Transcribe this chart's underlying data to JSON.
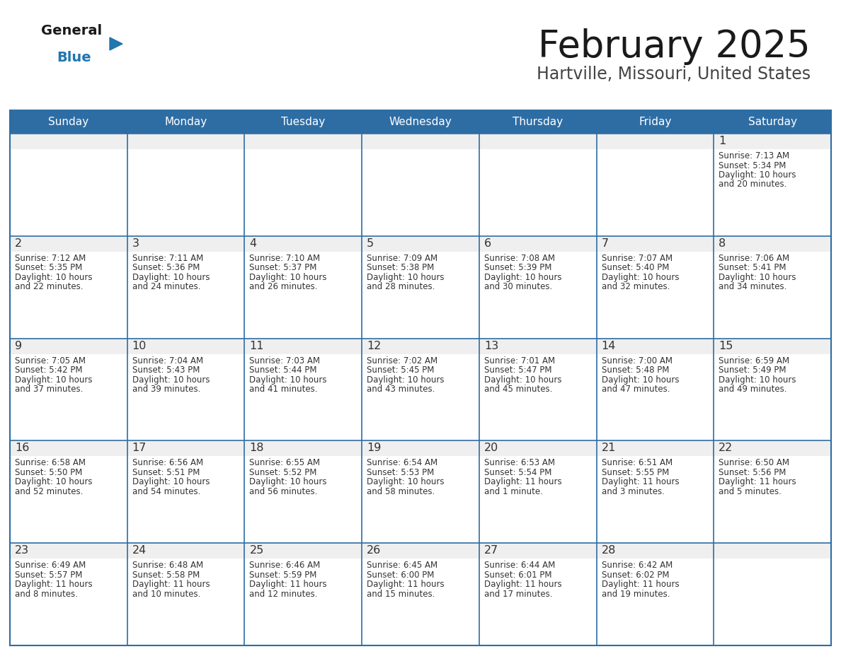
{
  "title": "February 2025",
  "subtitle": "Hartville, Missouri, United States",
  "days_of_week": [
    "Sunday",
    "Monday",
    "Tuesday",
    "Wednesday",
    "Thursday",
    "Friday",
    "Saturday"
  ],
  "header_bg": "#2E6DA4",
  "header_text": "#FFFFFF",
  "cell_bg_gray": "#EFEFEF",
  "cell_bg_white": "#FFFFFF",
  "border_color": "#2E6DA4",
  "title_color": "#1a1a1a",
  "subtitle_color": "#444444",
  "day_number_color": "#333333",
  "cell_text_color": "#333333",
  "logo_general_color": "#1a1a1a",
  "logo_blue_color": "#2176AE",
  "calendar_data": [
    [
      null,
      null,
      null,
      null,
      null,
      null,
      {
        "day": 1,
        "sunrise": "7:13 AM",
        "sunset": "5:34 PM",
        "daylight": "10 hours and 20 minutes."
      }
    ],
    [
      {
        "day": 2,
        "sunrise": "7:12 AM",
        "sunset": "5:35 PM",
        "daylight": "10 hours and 22 minutes."
      },
      {
        "day": 3,
        "sunrise": "7:11 AM",
        "sunset": "5:36 PM",
        "daylight": "10 hours and 24 minutes."
      },
      {
        "day": 4,
        "sunrise": "7:10 AM",
        "sunset": "5:37 PM",
        "daylight": "10 hours and 26 minutes."
      },
      {
        "day": 5,
        "sunrise": "7:09 AM",
        "sunset": "5:38 PM",
        "daylight": "10 hours and 28 minutes."
      },
      {
        "day": 6,
        "sunrise": "7:08 AM",
        "sunset": "5:39 PM",
        "daylight": "10 hours and 30 minutes."
      },
      {
        "day": 7,
        "sunrise": "7:07 AM",
        "sunset": "5:40 PM",
        "daylight": "10 hours and 32 minutes."
      },
      {
        "day": 8,
        "sunrise": "7:06 AM",
        "sunset": "5:41 PM",
        "daylight": "10 hours and 34 minutes."
      }
    ],
    [
      {
        "day": 9,
        "sunrise": "7:05 AM",
        "sunset": "5:42 PM",
        "daylight": "10 hours and 37 minutes."
      },
      {
        "day": 10,
        "sunrise": "7:04 AM",
        "sunset": "5:43 PM",
        "daylight": "10 hours and 39 minutes."
      },
      {
        "day": 11,
        "sunrise": "7:03 AM",
        "sunset": "5:44 PM",
        "daylight": "10 hours and 41 minutes."
      },
      {
        "day": 12,
        "sunrise": "7:02 AM",
        "sunset": "5:45 PM",
        "daylight": "10 hours and 43 minutes."
      },
      {
        "day": 13,
        "sunrise": "7:01 AM",
        "sunset": "5:47 PM",
        "daylight": "10 hours and 45 minutes."
      },
      {
        "day": 14,
        "sunrise": "7:00 AM",
        "sunset": "5:48 PM",
        "daylight": "10 hours and 47 minutes."
      },
      {
        "day": 15,
        "sunrise": "6:59 AM",
        "sunset": "5:49 PM",
        "daylight": "10 hours and 49 minutes."
      }
    ],
    [
      {
        "day": 16,
        "sunrise": "6:58 AM",
        "sunset": "5:50 PM",
        "daylight": "10 hours and 52 minutes."
      },
      {
        "day": 17,
        "sunrise": "6:56 AM",
        "sunset": "5:51 PM",
        "daylight": "10 hours and 54 minutes."
      },
      {
        "day": 18,
        "sunrise": "6:55 AM",
        "sunset": "5:52 PM",
        "daylight": "10 hours and 56 minutes."
      },
      {
        "day": 19,
        "sunrise": "6:54 AM",
        "sunset": "5:53 PM",
        "daylight": "10 hours and 58 minutes."
      },
      {
        "day": 20,
        "sunrise": "6:53 AM",
        "sunset": "5:54 PM",
        "daylight": "11 hours and 1 minute."
      },
      {
        "day": 21,
        "sunrise": "6:51 AM",
        "sunset": "5:55 PM",
        "daylight": "11 hours and 3 minutes."
      },
      {
        "day": 22,
        "sunrise": "6:50 AM",
        "sunset": "5:56 PM",
        "daylight": "11 hours and 5 minutes."
      }
    ],
    [
      {
        "day": 23,
        "sunrise": "6:49 AM",
        "sunset": "5:57 PM",
        "daylight": "11 hours and 8 minutes."
      },
      {
        "day": 24,
        "sunrise": "6:48 AM",
        "sunset": "5:58 PM",
        "daylight": "11 hours and 10 minutes."
      },
      {
        "day": 25,
        "sunrise": "6:46 AM",
        "sunset": "5:59 PM",
        "daylight": "11 hours and 12 minutes."
      },
      {
        "day": 26,
        "sunrise": "6:45 AM",
        "sunset": "6:00 PM",
        "daylight": "11 hours and 15 minutes."
      },
      {
        "day": 27,
        "sunrise": "6:44 AM",
        "sunset": "6:01 PM",
        "daylight": "11 hours and 17 minutes."
      },
      {
        "day": 28,
        "sunrise": "6:42 AM",
        "sunset": "6:02 PM",
        "daylight": "11 hours and 19 minutes."
      },
      null
    ]
  ]
}
